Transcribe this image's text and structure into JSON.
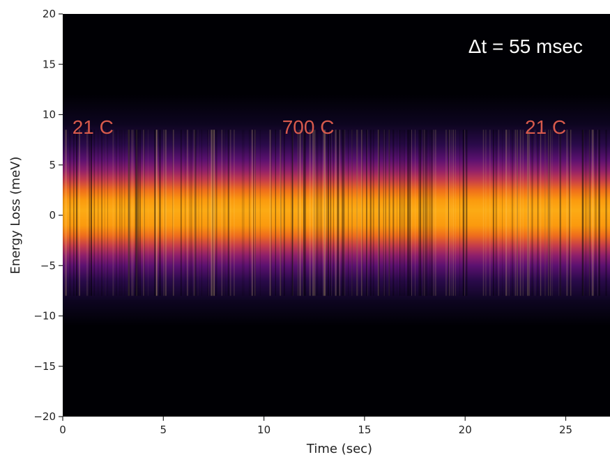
{
  "chart_data": {
    "type": "heatmap",
    "title": "",
    "xlabel": "Time (sec)",
    "ylabel": "Energy Loss (meV)",
    "xlim": [
      0,
      27.2
    ],
    "ylim": [
      -20,
      20
    ],
    "x_ticks": [
      0,
      5,
      10,
      15,
      20,
      25
    ],
    "y_ticks": [
      -20,
      -15,
      -10,
      -5,
      0,
      5,
      10,
      15,
      20
    ],
    "x_tick_labels": [
      "0",
      "5",
      "10",
      "15",
      "20",
      "25"
    ],
    "y_tick_labels": [
      "−20",
      "−15",
      "−10",
      "−5",
      "0",
      "5",
      "10",
      "15",
      "20"
    ],
    "colormap": "inferno",
    "intensity_profile": {
      "center_energy": 0.5,
      "peak_band": [
        -3,
        4
      ],
      "visible_extent": [
        -10,
        10
      ]
    },
    "annotations": [
      {
        "text": "21 C",
        "x": 1.5,
        "y": 8.8
      },
      {
        "text": "700 C",
        "x": 12.2,
        "y": 8.8
      },
      {
        "text": "21 C",
        "x": 24.0,
        "y": 8.8
      },
      {
        "text": "Δt = 55 msec",
        "x": 23.0,
        "y": 16.8
      }
    ],
    "colors": {
      "background": "#000004",
      "annotation_temp": "#d85a4c",
      "annotation_dt": "#ffffff"
    }
  }
}
